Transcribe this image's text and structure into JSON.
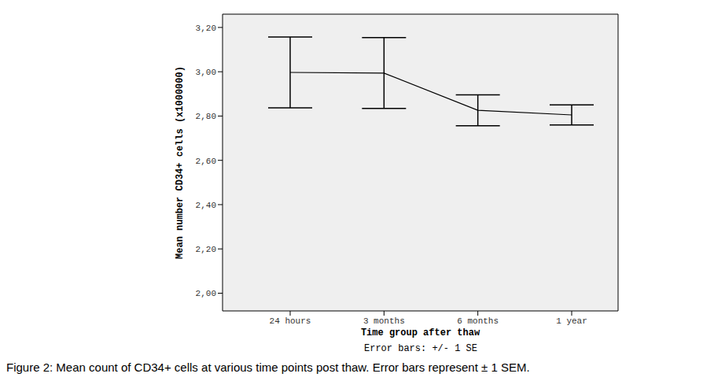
{
  "chart_data": {
    "type": "line",
    "caption": "Figure 2: Mean count of CD34+ cells at various time points post thaw. Error bars represent ± 1 SEM.",
    "annotation": "Error bars: +/- 1 SE",
    "x_label": "Time group after thaw",
    "y_label": "Mean number CD34+ cells (x1000000)",
    "categories": [
      "24 hours",
      "3 months",
      "6 months",
      "1 year"
    ],
    "values": [
      2.997,
      2.994,
      2.826,
      2.805
    ],
    "error": [
      0.16,
      0.16,
      0.07,
      0.045
    ],
    "color": "#000000",
    "ylim": [
      1.92,
      3.26
    ],
    "yticks": [
      {
        "value": 2.0,
        "label": "2,00"
      },
      {
        "value": 2.2,
        "label": "2,20"
      },
      {
        "value": 2.4,
        "label": "2,40"
      },
      {
        "value": 2.6,
        "label": "2,60"
      },
      {
        "value": 2.8,
        "label": "2,80"
      },
      {
        "value": 3.0,
        "label": "3,00"
      },
      {
        "value": 3.2,
        "label": "3,20"
      }
    ],
    "grid": false,
    "marker": "none",
    "line_style": "solid"
  }
}
